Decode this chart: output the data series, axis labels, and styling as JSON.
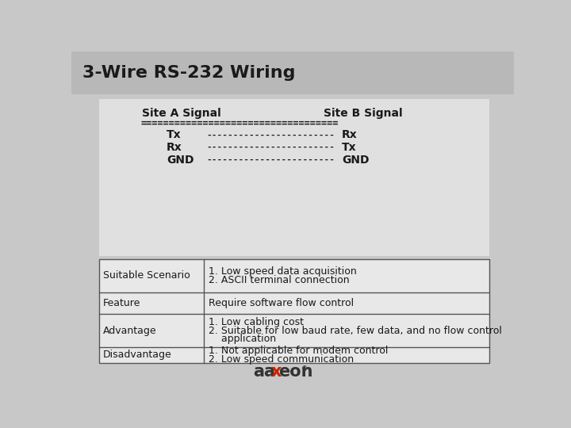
{
  "title": "3-Wire RS-232 Wiring",
  "title_fontsize": 16,
  "header_site_a": "Site A Signal",
  "header_site_b": "Site B Signal",
  "equals_line": "===================================",
  "wiring_rows": [
    {
      "left": "Tx",
      "line": "------------------------",
      "right": "Rx"
    },
    {
      "left": "Rx",
      "line": "------------------------",
      "right": "Tx"
    },
    {
      "left": "GND",
      "line": "------------------------",
      "right": "GND"
    }
  ],
  "table_rows": [
    {
      "label": "Suitable Scenario",
      "content": [
        "1. Low speed data acquisition",
        "2. ASCII terminal connection"
      ]
    },
    {
      "label": "Feature",
      "content": [
        "Require software flow control"
      ]
    },
    {
      "label": "Advantage",
      "content": [
        "1. Low cabling cost",
        "2. Suitable for low baud rate, few data, and no flow control",
        "    application"
      ]
    },
    {
      "label": "Disadvantage",
      "content": [
        "1. Not applicable for modem control",
        "2. Low speed communication"
      ]
    }
  ],
  "bg_color": "#c8c8c8",
  "title_bar_color": "#b8b8b8",
  "panel_color": "#e0e0e0",
  "table_color": "#e8e8e8",
  "border_color": "#555555",
  "text_color": "#1a1a1a",
  "logo_color1": "#333333",
  "logo_color_x": "#cc2200",
  "logo_color2": "#333333"
}
